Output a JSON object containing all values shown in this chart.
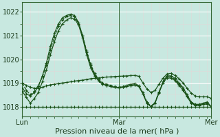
{
  "xlabel": "Pression niveau de la mer( hPa )",
  "bg_color": "#c8e8e0",
  "plot_bg_color": "#c8e8e0",
  "grid_major_color": "#ffffff",
  "grid_minor_color": "#ddf0ea",
  "line_color": "#1a5218",
  "xlim": [
    0,
    47
  ],
  "ylim": [
    1017.6,
    1022.4
  ],
  "yticks": [
    1018,
    1019,
    1020,
    1021,
    1022
  ],
  "xtick_labels": [
    "Lun",
    "Mar",
    "Mer"
  ],
  "xtick_pos": [
    0,
    24,
    47
  ],
  "series": [
    {
      "y": [
        1018.8,
        1018.55,
        1018.45,
        1018.6,
        1018.85,
        1019.3,
        1019.85,
        1020.55,
        1021.1,
        1021.5,
        1021.75,
        1021.85,
        1021.9,
        1021.85,
        1021.55,
        1021.0,
        1020.3,
        1019.75,
        1019.35,
        1019.1,
        1018.95,
        1018.9,
        1018.85,
        1018.82,
        1018.8,
        1018.82,
        1018.85,
        1018.9,
        1018.92,
        1018.85,
        1018.55,
        1018.15,
        1018.0,
        1018.15,
        1018.6,
        1019.05,
        1019.3,
        1019.3,
        1019.2,
        1019.0,
        1018.8,
        1018.5,
        1018.2,
        1018.1,
        1018.1,
        1018.15,
        1018.2,
        1018.0
      ],
      "style": "-"
    },
    {
      "y": [
        1019.0,
        1018.7,
        1018.5,
        1018.65,
        1018.9,
        1019.25,
        1019.75,
        1020.4,
        1020.95,
        1021.4,
        1021.65,
        1021.8,
        1021.85,
        1021.8,
        1021.5,
        1021.0,
        1020.35,
        1019.8,
        1019.4,
        1019.15,
        1019.0,
        1018.95,
        1018.9,
        1018.85,
        1018.82,
        1018.85,
        1018.9,
        1018.95,
        1018.98,
        1018.88,
        1018.6,
        1018.2,
        1018.02,
        1018.18,
        1018.62,
        1019.05,
        1019.28,
        1019.25,
        1019.15,
        1018.95,
        1018.75,
        1018.45,
        1018.18,
        1018.08,
        1018.08,
        1018.12,
        1018.15,
        1018.0
      ],
      "style": "--"
    },
    {
      "y": [
        1018.65,
        1018.4,
        1018.15,
        1018.35,
        1018.6,
        1019.05,
        1019.55,
        1020.2,
        1020.75,
        1021.2,
        1021.5,
        1021.65,
        1021.75,
        1021.7,
        1021.45,
        1020.9,
        1020.2,
        1019.65,
        1019.3,
        1019.08,
        1018.95,
        1018.9,
        1018.85,
        1018.82,
        1018.8,
        1018.82,
        1018.85,
        1018.9,
        1018.92,
        1018.85,
        1018.55,
        1018.15,
        1018.0,
        1018.15,
        1018.58,
        1019.0,
        1019.22,
        1019.2,
        1019.1,
        1018.9,
        1018.7,
        1018.42,
        1018.15,
        1018.05,
        1018.05,
        1018.1,
        1018.12,
        1018.0
      ],
      "style": "-"
    },
    {
      "y": [
        1018.0,
        1018.0,
        1018.0,
        1018.0,
        1018.0,
        1018.0,
        1018.0,
        1018.0,
        1018.0,
        1018.0,
        1018.0,
        1018.0,
        1018.0,
        1018.0,
        1018.0,
        1018.0,
        1018.0,
        1018.0,
        1018.0,
        1018.0,
        1018.0,
        1018.0,
        1018.0,
        1018.0,
        1018.0,
        1018.0,
        1018.0,
        1018.0,
        1018.0,
        1018.0,
        1018.0,
        1018.0,
        1018.0,
        1018.0,
        1018.0,
        1018.0,
        1018.0,
        1018.0,
        1018.0,
        1018.0,
        1018.0,
        1018.0,
        1018.0,
        1018.0,
        1018.0,
        1018.0,
        1018.0,
        1018.0
      ],
      "style": "-"
    },
    {
      "y": [
        1019.0,
        1018.9,
        1018.82,
        1018.78,
        1018.78,
        1018.82,
        1018.88,
        1018.92,
        1018.95,
        1018.98,
        1019.0,
        1019.02,
        1019.05,
        1019.08,
        1019.1,
        1019.12,
        1019.15,
        1019.18,
        1019.2,
        1019.22,
        1019.24,
        1019.25,
        1019.26,
        1019.27,
        1019.28,
        1019.29,
        1019.3,
        1019.31,
        1019.32,
        1019.28,
        1019.0,
        1018.75,
        1018.6,
        1018.68,
        1018.95,
        1019.2,
        1019.38,
        1019.4,
        1019.32,
        1019.18,
        1019.0,
        1018.78,
        1018.58,
        1018.45,
        1018.42,
        1018.42,
        1018.42,
        1018.35
      ],
      "style": "-"
    }
  ],
  "marker": "+",
  "marker_size": 3,
  "linewidth": 0.9,
  "vline_x": 24,
  "vline_color": "#336633",
  "xlabel_fontsize": 8,
  "tick_fontsize": 7
}
